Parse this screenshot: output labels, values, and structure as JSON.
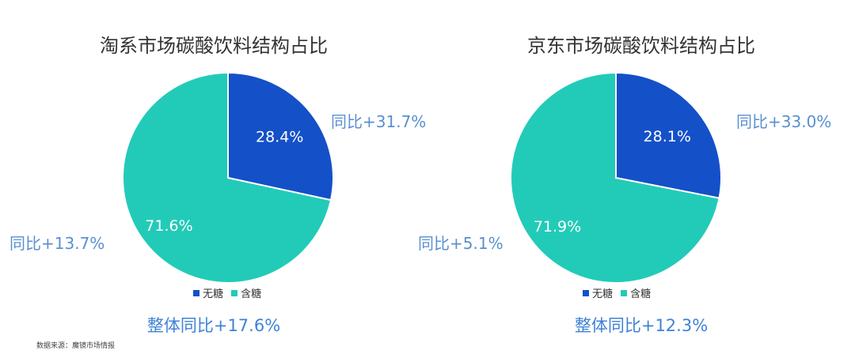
{
  "colors": {
    "no_sugar": "#1450c8",
    "sugar": "#22cbb8",
    "yoy_text": "#5a8fd0",
    "overall_text": "#3f82d6"
  },
  "legend": {
    "no_sugar": "无糖",
    "sugar": "含糖"
  },
  "source": "数据来源：魔镜市场情报",
  "chart_data": [
    {
      "type": "pie",
      "title": "淘系市场碳酸饮料结构占比",
      "categories": [
        "无糖",
        "含糖"
      ],
      "values": [
        28.4,
        71.6
      ],
      "labels": [
        "28.4%",
        "71.6%"
      ],
      "annotations": {
        "no_sugar_yoy": "同比+31.7%",
        "sugar_yoy": "同比+13.7%",
        "overall": "整体同比+17.6%"
      },
      "legend_position": "bottom"
    },
    {
      "type": "pie",
      "title": "京东市场碳酸饮料结构占比",
      "categories": [
        "无糖",
        "含糖"
      ],
      "values": [
        28.1,
        71.9
      ],
      "labels": [
        "28.1%",
        "71.9%"
      ],
      "annotations": {
        "no_sugar_yoy": "同比+33.0%",
        "sugar_yoy": "同比+5.1%",
        "overall": "整体同比+12.3%"
      },
      "legend_position": "bottom"
    }
  ]
}
